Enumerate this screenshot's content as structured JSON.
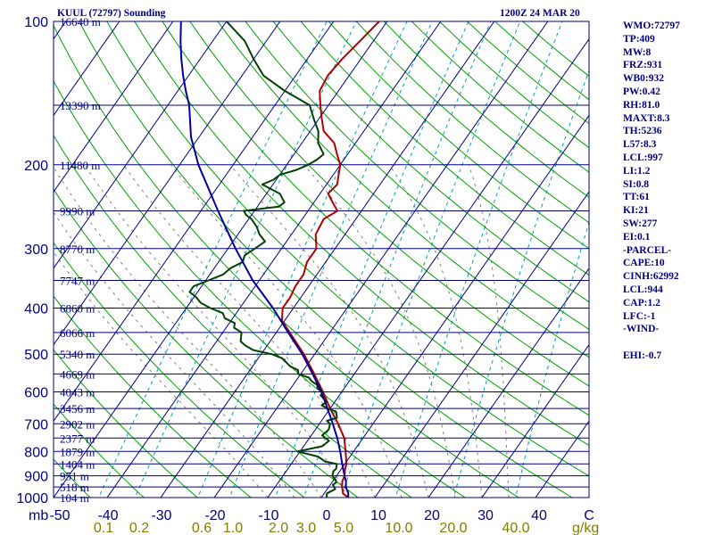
{
  "title_left": "KUUL (72797) Sounding",
  "title_right": "1200Z 24 MAR 20",
  "stats": [
    "WMO:72797",
    "TP:409",
    "MW:8",
    "FRZ:931",
    "WB0:932",
    "PW:0.42",
    "RH:81.0",
    "MAXT:8.3",
    "TH:5236",
    "L57:8.3",
    "LCL:997",
    "LI:1.2",
    "SI:0.8",
    "TT:61",
    "KI:21",
    "SW:277",
    "EI:0.1",
    "-PARCEL-",
    "CAPE:10",
    "CINH:62992",
    "LCL:944",
    "CAP:1.2",
    "LFC:-1",
    "-WIND-",
    "",
    "EHI:-0.7"
  ],
  "colors": {
    "frame": "#000080",
    "isobar": "#000080",
    "isotherm": "#000080",
    "dry_adiabat": "#00a000",
    "moist_adiabat": "#808080",
    "mixing_ratio": "#00a0c0",
    "temperature": "#b00000",
    "dewpoint": "#004000",
    "parcel": "#0000a0",
    "axis_text": "#000080",
    "mixing_text": "#808000"
  },
  "chart_data": {
    "type": "line",
    "chart_kind": "skew-T log-P sounding",
    "xlabel": "C",
    "ylabel": "mb",
    "xlim": [
      -50,
      50
    ],
    "ylim": [
      1000,
      100
    ],
    "pressure_ticks": [
      100,
      200,
      300,
      400,
      500,
      600,
      700,
      800,
      900,
      1000
    ],
    "temperature_ticks": [
      -50,
      -40,
      -30,
      -20,
      -10,
      0,
      10,
      20,
      30,
      40
    ],
    "temperature_tick_labels": [
      "-50",
      "-40",
      "-30",
      "-20",
      "-10",
      "0",
      "10",
      "20",
      "30",
      "40"
    ],
    "isotherm_values": [
      -110,
      -100,
      -90,
      -80,
      -70,
      -60,
      -50,
      -40,
      -30,
      -20,
      -10,
      0,
      10,
      20,
      30,
      40,
      50
    ],
    "height_labels": [
      {
        "p": 100,
        "label": "16640 m"
      },
      {
        "p": 150,
        "label": "13390 m"
      },
      {
        "p": 200,
        "label": "11480 m"
      },
      {
        "p": 250,
        "label": "9990 m"
      },
      {
        "p": 300,
        "label": "8770 m"
      },
      {
        "p": 350,
        "label": "7747 m"
      },
      {
        "p": 400,
        "label": "6860 m"
      },
      {
        "p": 450,
        "label": "6066 m"
      },
      {
        "p": 500,
        "label": "5340 m"
      },
      {
        "p": 550,
        "label": "4669 m"
      },
      {
        "p": 600,
        "label": "4043 m"
      },
      {
        "p": 650,
        "label": "3456 m"
      },
      {
        "p": 700,
        "label": "2902 m"
      },
      {
        "p": 750,
        "label": "2377 m"
      },
      {
        "p": 800,
        "label": "1879 m"
      },
      {
        "p": 850,
        "label": "1404 m"
      },
      {
        "p": 900,
        "label": "951 m"
      },
      {
        "p": 950,
        "label": "518 m"
      },
      {
        "p": 1000,
        "label": "104 m"
      }
    ],
    "mixing_ratio_lines": [
      0.1,
      0.2,
      0.6,
      1.0,
      2.0,
      3.0,
      5.0,
      10.0,
      20.0,
      40.0
    ],
    "mixing_ratio_labels": [
      "0.1",
      "0.2",
      "0.6",
      "1.0",
      "2.0",
      "3.0",
      "5.0",
      "10.0",
      "20.0",
      "40.0"
    ],
    "mixing_ratio_unit": "g/kg",
    "dry_adiabats_K": [
      200,
      210,
      220,
      230,
      240,
      250,
      260,
      270,
      280,
      290,
      300,
      310,
      320,
      330,
      340,
      350,
      360,
      370,
      380,
      390,
      400,
      410,
      420,
      430,
      440,
      450,
      460,
      470,
      480
    ],
    "moist_adiabats_C": [
      -10,
      -5,
      0,
      5,
      10,
      15,
      20,
      25,
      30,
      35
    ],
    "series": [
      {
        "key": "temperature",
        "p": [
          1000,
          980,
          950,
          925,
          900,
          875,
          850,
          800,
          750,
          700,
          650,
          600,
          550,
          500,
          450,
          425,
          400,
          380,
          360,
          340,
          320,
          300,
          280,
          260,
          250,
          240,
          230,
          220,
          210,
          200,
          190,
          180,
          170,
          160,
          150,
          140,
          130,
          120,
          110,
          100
        ],
        "t": [
          5.0,
          3.5,
          2.5,
          1.8,
          1.5,
          0.8,
          0.3,
          -1.5,
          -3.5,
          -6.5,
          -10,
          -13.5,
          -17.5,
          -22,
          -27.5,
          -30.5,
          -32,
          -32,
          -32.5,
          -32.5,
          -33.5,
          -33.5,
          -35.5,
          -36,
          -34.5,
          -36.5,
          -38.5,
          -38,
          -39,
          -40,
          -42,
          -44,
          -47.5,
          -49.5,
          -51.5,
          -53.5,
          -54,
          -53.5,
          -52.5,
          -51.5
        ]
      },
      {
        "key": "dewpoint",
        "p": [
          1000,
          980,
          960,
          940,
          930,
          920,
          900,
          880,
          870,
          850,
          840,
          820,
          800,
          780,
          760,
          740,
          720,
          700,
          690,
          680,
          660,
          650,
          640,
          630,
          620,
          610,
          600,
          590,
          580,
          570,
          560,
          550,
          540,
          530,
          510,
          500,
          490,
          480,
          470,
          460,
          450,
          440,
          430,
          420,
          410,
          400,
          390,
          380,
          370,
          360,
          350,
          340,
          330,
          320,
          310,
          300,
          290,
          280,
          270,
          260,
          255,
          250,
          245,
          240,
          230,
          220,
          215,
          210,
          205,
          200,
          195,
          190,
          180,
          170,
          160,
          150,
          140,
          130,
          120,
          110,
          100
        ],
        "t": [
          1.0,
          0.5,
          1.5,
          0.5,
          0.8,
          0.5,
          -0.8,
          -1.2,
          -1.0,
          -1.5,
          -4.0,
          -6.0,
          -10.5,
          -6.5,
          -6.0,
          -8.0,
          -7.5,
          -8.0,
          -9.0,
          -7.5,
          -8.5,
          -10.5,
          -12.0,
          -11.5,
          -12.5,
          -13.5,
          -13.5,
          -15.0,
          -15.5,
          -17.0,
          -18.0,
          -20.5,
          -21.0,
          -23.0,
          -25.5,
          -28.0,
          -32.0,
          -34.0,
          -35.5,
          -36.0,
          -36.5,
          -38.5,
          -39.0,
          -41.5,
          -42.5,
          -45.5,
          -48.0,
          -49.5,
          -51.5,
          -51.5,
          -49.5,
          -47.5,
          -47.0,
          -45.5,
          -46.0,
          -45.0,
          -44.0,
          -46.0,
          -47.5,
          -49.5,
          -51.0,
          -52.0,
          -46.0,
          -45.5,
          -47.5,
          -52.0,
          -50.5,
          -50.0,
          -47.5,
          -46.0,
          -45.0,
          -44.5,
          -47.0,
          -48.5,
          -51.0,
          -53.5,
          -60.0,
          -66.0,
          -70.0,
          -74.0,
          -80.0
        ]
      },
      {
        "key": "parcel",
        "p": [
          1000,
          980,
          950,
          925,
          900,
          875,
          850,
          800,
          750,
          700,
          650,
          600,
          550,
          500,
          450,
          400,
          350,
          300,
          250,
          200,
          175,
          150,
          140,
          130,
          120,
          110,
          100
        ],
        "t": [
          5.0,
          4.5,
          3.2,
          2.5,
          1.5,
          0.5,
          -0.5,
          -2.5,
          -4.8,
          -7.5,
          -10.5,
          -13.8,
          -17.8,
          -22.3,
          -27.8,
          -33.8,
          -41.2,
          -48.6,
          -56.8,
          -66.5,
          -71.5,
          -76.0,
          -78.5,
          -81.0,
          -83.5,
          -86.0,
          -88.5
        ]
      }
    ]
  }
}
